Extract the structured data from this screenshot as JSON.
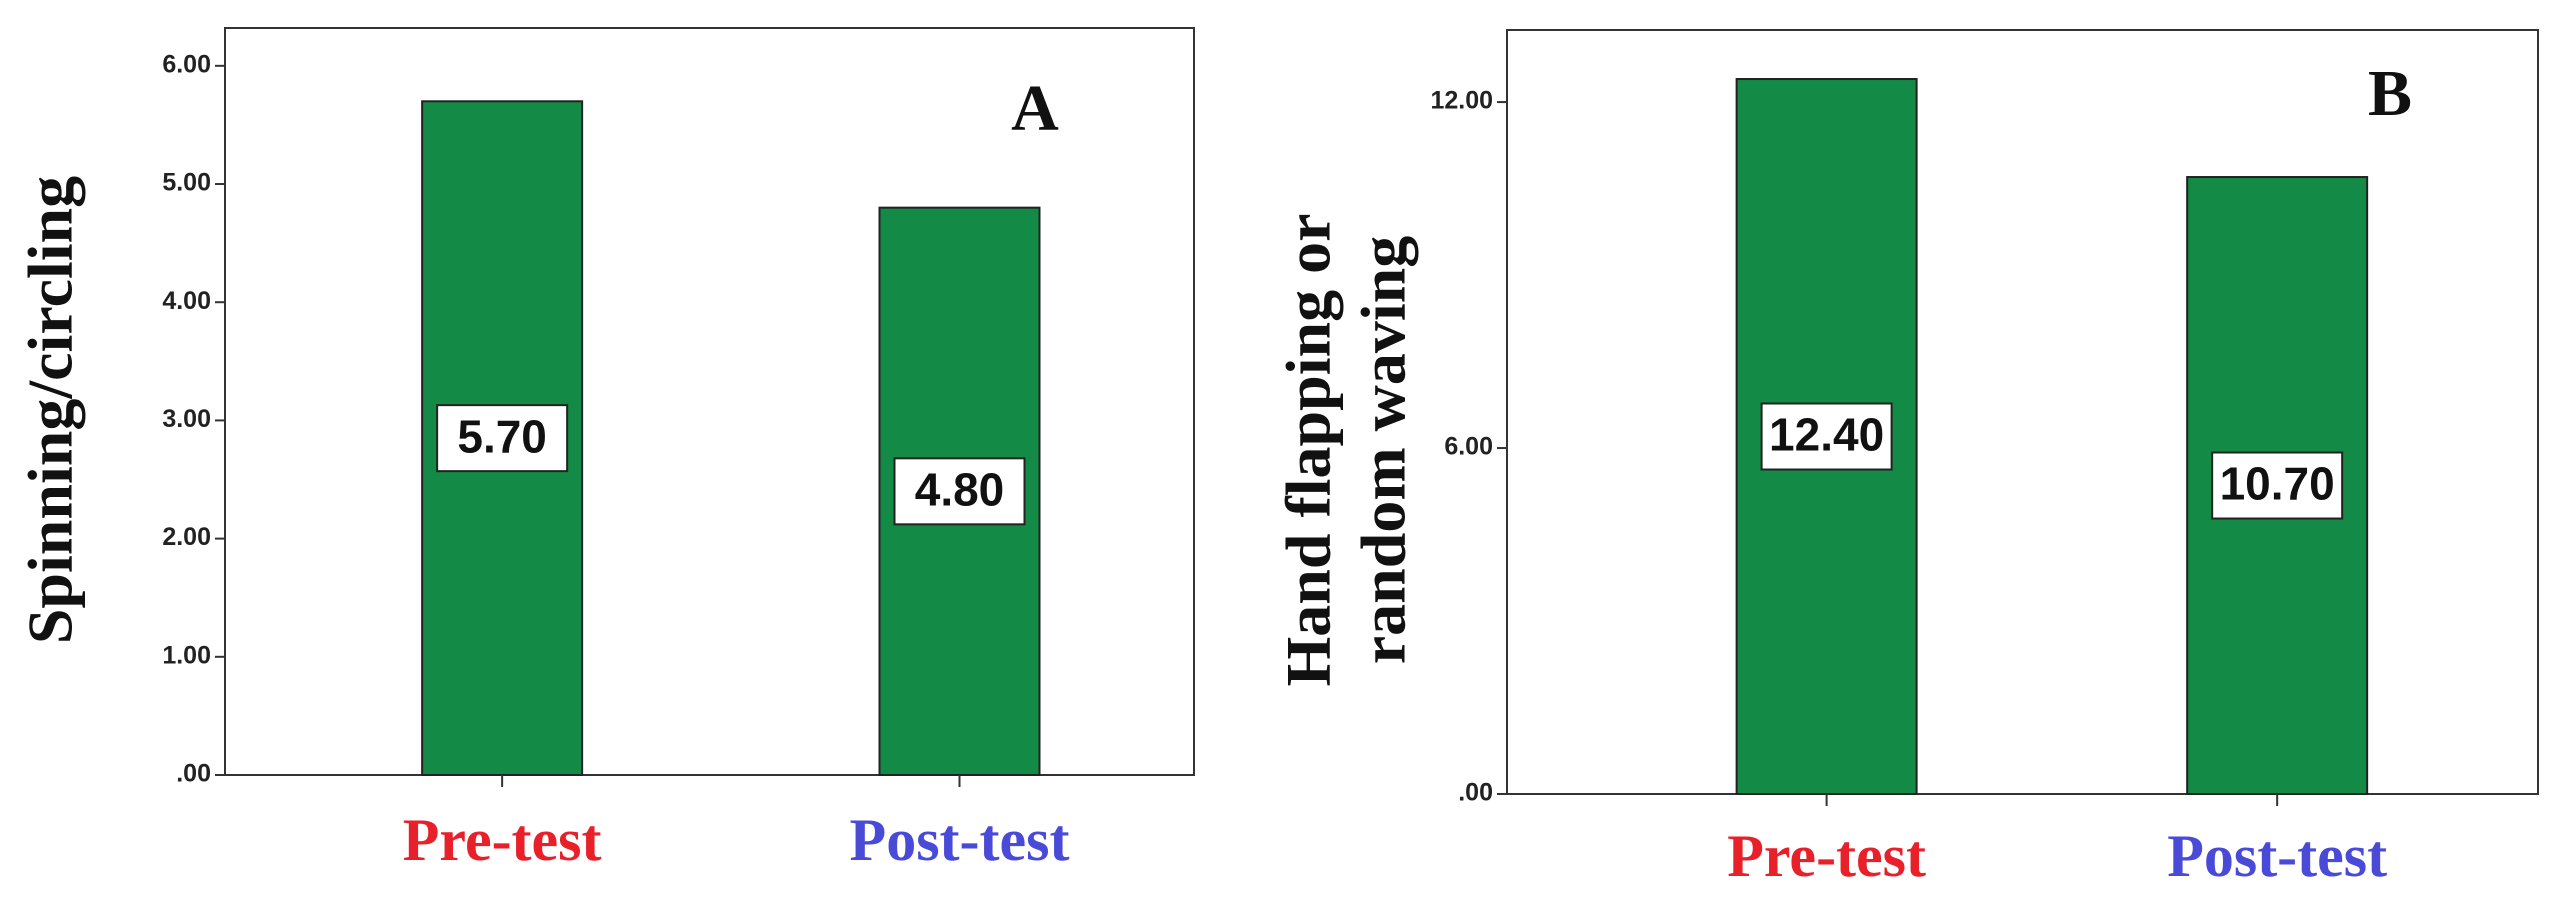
{
  "chart_data": [
    {
      "type": "bar",
      "ylabel": [
        "Spinning/circling"
      ],
      "annotation": "A",
      "categories": [
        "Pre-test",
        "Post-test"
      ],
      "category_colors": [
        "#e8202a",
        "#4a4ad8"
      ],
      "values": [
        5.7,
        4.8
      ],
      "value_labels": [
        "5.70",
        "4.80"
      ],
      "color": "#138a45",
      "ylim": [
        0,
        6.32
      ],
      "yticks": [
        {
          "value": 0,
          "label": ".00"
        },
        {
          "value": 1,
          "label": "1.00"
        },
        {
          "value": 2,
          "label": "2.00"
        },
        {
          "value": 3,
          "label": "3.00"
        },
        {
          "value": 4,
          "label": "4.00"
        },
        {
          "value": 5,
          "label": "5.00"
        },
        {
          "value": 6,
          "label": "6.00"
        }
      ]
    },
    {
      "type": "bar",
      "ylabel": [
        "Hand flapping or",
        "random waving"
      ],
      "annotation": "B",
      "categories": [
        "Pre-test",
        "Post-test"
      ],
      "category_colors": [
        "#e8202a",
        "#4a4ad8"
      ],
      "values": [
        12.4,
        10.7
      ],
      "value_labels": [
        "12.40",
        "10.70"
      ],
      "color": "#138a45",
      "ylim": [
        0,
        13.25
      ],
      "yticks": [
        {
          "value": 0,
          "label": ".00"
        },
        {
          "value": 6,
          "label": "6.00"
        },
        {
          "value": 12,
          "label": "12.00"
        }
      ]
    }
  ]
}
